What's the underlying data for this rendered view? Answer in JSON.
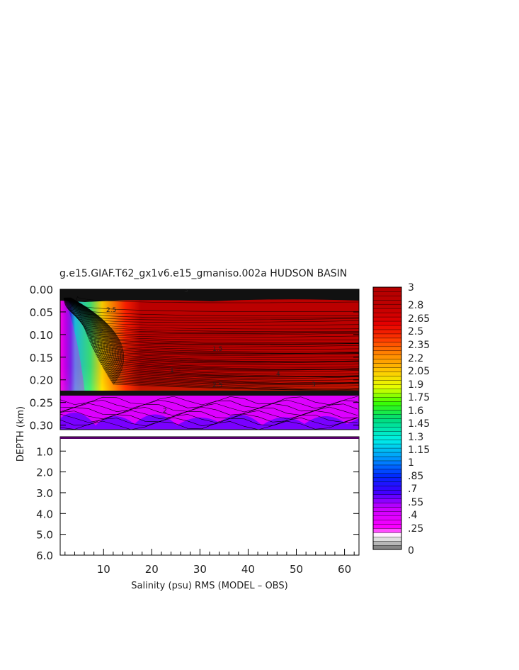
{
  "chart_data": {
    "type": "heatmap",
    "title": "g.e15.GIAF.T62_gx1v6.e15_gmaniso.002a HUDSON BASIN",
    "xlabel": "Salinity (psu) RMS (MODEL – OBS)",
    "ylabel": "DEPTH (km)",
    "x_ticks": [
      10,
      20,
      30,
      40,
      50,
      60
    ],
    "xlim": [
      1,
      63
    ],
    "upper_panel": {
      "ylim": [
        0.31,
        0.0
      ],
      "y_ticks": [
        "0.00",
        "0.05",
        "0.10",
        "0.15",
        "0.20",
        "0.25",
        "0.30"
      ]
    },
    "lower_panel": {
      "ylim": [
        6.0,
        0.31
      ],
      "y_ticks": [
        "1.0",
        "2.0",
        "3.0",
        "4.0",
        "5.0",
        "6.0"
      ]
    },
    "colorbar": {
      "labels": [
        "3",
        "2.8",
        "2.65",
        "2.5",
        "2.35",
        "2.2",
        "2.05",
        "1.9",
        "1.75",
        "1.6",
        "1.45",
        "1.3",
        "1.15",
        "1",
        ".85",
        ".7",
        ".55",
        ".4",
        ".25",
        "0"
      ],
      "min": 0,
      "max": 3
    },
    "contour_labels": [
      "3",
      "2.5",
      "2",
      "1.5",
      "1",
      "4"
    ]
  }
}
